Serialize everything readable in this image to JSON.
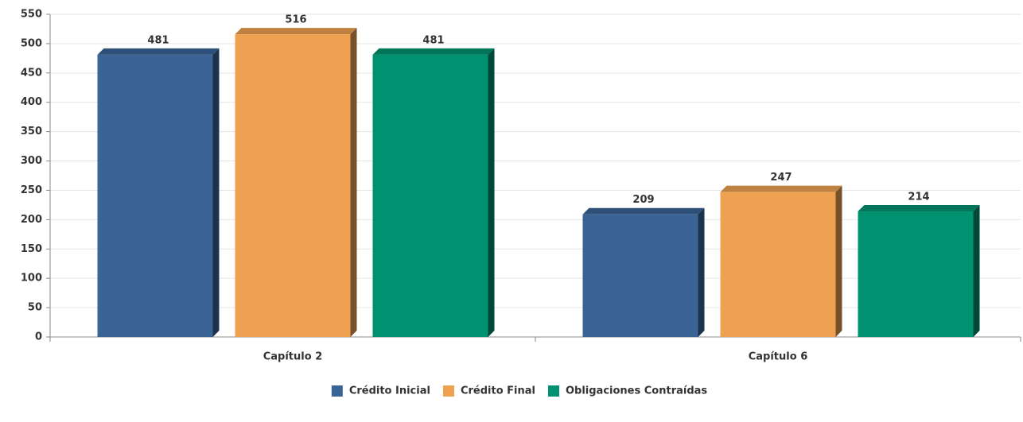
{
  "chart_data": {
    "type": "bar",
    "categories": [
      "Capítulo 2",
      "Capítulo 6"
    ],
    "series": [
      {
        "name": "Crédito Inicial",
        "color": "#3a6396",
        "values": [
          481,
          209
        ]
      },
      {
        "name": "Crédito Final",
        "color": "#eea151",
        "values": [
          516,
          247
        ]
      },
      {
        "name": "Obligaciones Contraídas",
        "color": "#009270",
        "values": [
          481,
          214
        ]
      }
    ],
    "ylim": [
      0,
      550
    ],
    "yticks": [
      0,
      50,
      100,
      150,
      200,
      250,
      300,
      350,
      400,
      450,
      500,
      550
    ],
    "grid": true,
    "legend": "bottom"
  }
}
